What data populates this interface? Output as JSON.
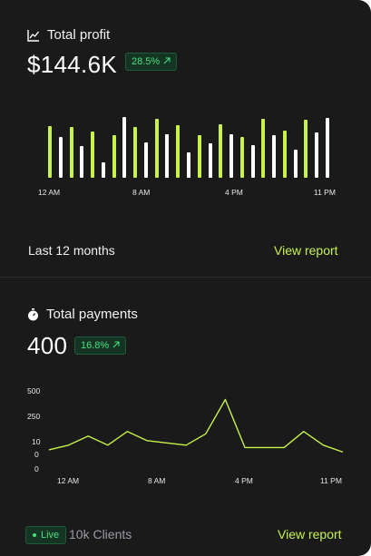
{
  "profit": {
    "title": "Total profit",
    "value": "$144.6K",
    "change": "28.5%",
    "period": "Last 12 months",
    "link": "View report",
    "x_ticks": [
      "12 AM",
      "8 AM",
      "4 PM",
      "11 PM"
    ]
  },
  "payments": {
    "title": "Total payments",
    "value": "400",
    "change": "16.8%",
    "live_label": "Live",
    "clients": "10k Clients",
    "link": "View report",
    "y_ticks": [
      "500",
      "250",
      "10",
      "0",
      "0"
    ],
    "x_ticks": [
      "12 AM",
      "8 AM",
      "4 PM",
      "11 PM"
    ]
  },
  "colors": {
    "accent": "#c6f24a",
    "bar_white": "#ffffff",
    "card_bg": "#1a1a1a",
    "badge_green": "#4ade80"
  },
  "chart_data": [
    {
      "type": "bar",
      "series": [
        {
          "values": [
            0.84,
            0.66,
            0.82,
            0.51,
            0.75,
            0.25,
            0.69,
            0.99,
            0.82,
            0.57,
            0.96,
            0.71,
            0.85,
            0.41,
            0.69,
            0.56,
            0.87,
            0.71,
            0.66,
            0.53,
            0.96,
            0.69,
            0.76,
            0.46,
            0.94,
            0.74,
            0.97
          ]
        }
      ],
      "colors": [
        "#c6f24a",
        "#ffffff",
        "#c6f24a",
        "#ffffff",
        "#c6f24a",
        "#ffffff",
        "#c6f24a",
        "#ffffff",
        "#c6f24a",
        "#ffffff",
        "#c6f24a",
        "#ffffff",
        "#c6f24a",
        "#ffffff",
        "#c6f24a",
        "#ffffff",
        "#c6f24a",
        "#ffffff",
        "#c6f24a",
        "#ffffff",
        "#c6f24a",
        "#ffffff",
        "#c6f24a",
        "#ffffff",
        "#c6f24a",
        "#ffffff",
        "#ffffff"
      ],
      "xticks": [
        "12 AM",
        "8 AM",
        "4 PM",
        "11 PM"
      ]
    },
    {
      "type": "line",
      "series": [
        {
          "values": [
            8,
            10,
            14,
            10,
            16,
            12,
            11,
            10,
            15,
            30,
            9,
            9,
            9,
            16,
            10,
            7
          ]
        }
      ],
      "yticks": [
        "500",
        "250",
        "10",
        "0",
        "0"
      ],
      "xticks": [
        "12 AM",
        "8 AM",
        "4 PM",
        "11 PM"
      ],
      "color": "#c6f24a"
    }
  ]
}
